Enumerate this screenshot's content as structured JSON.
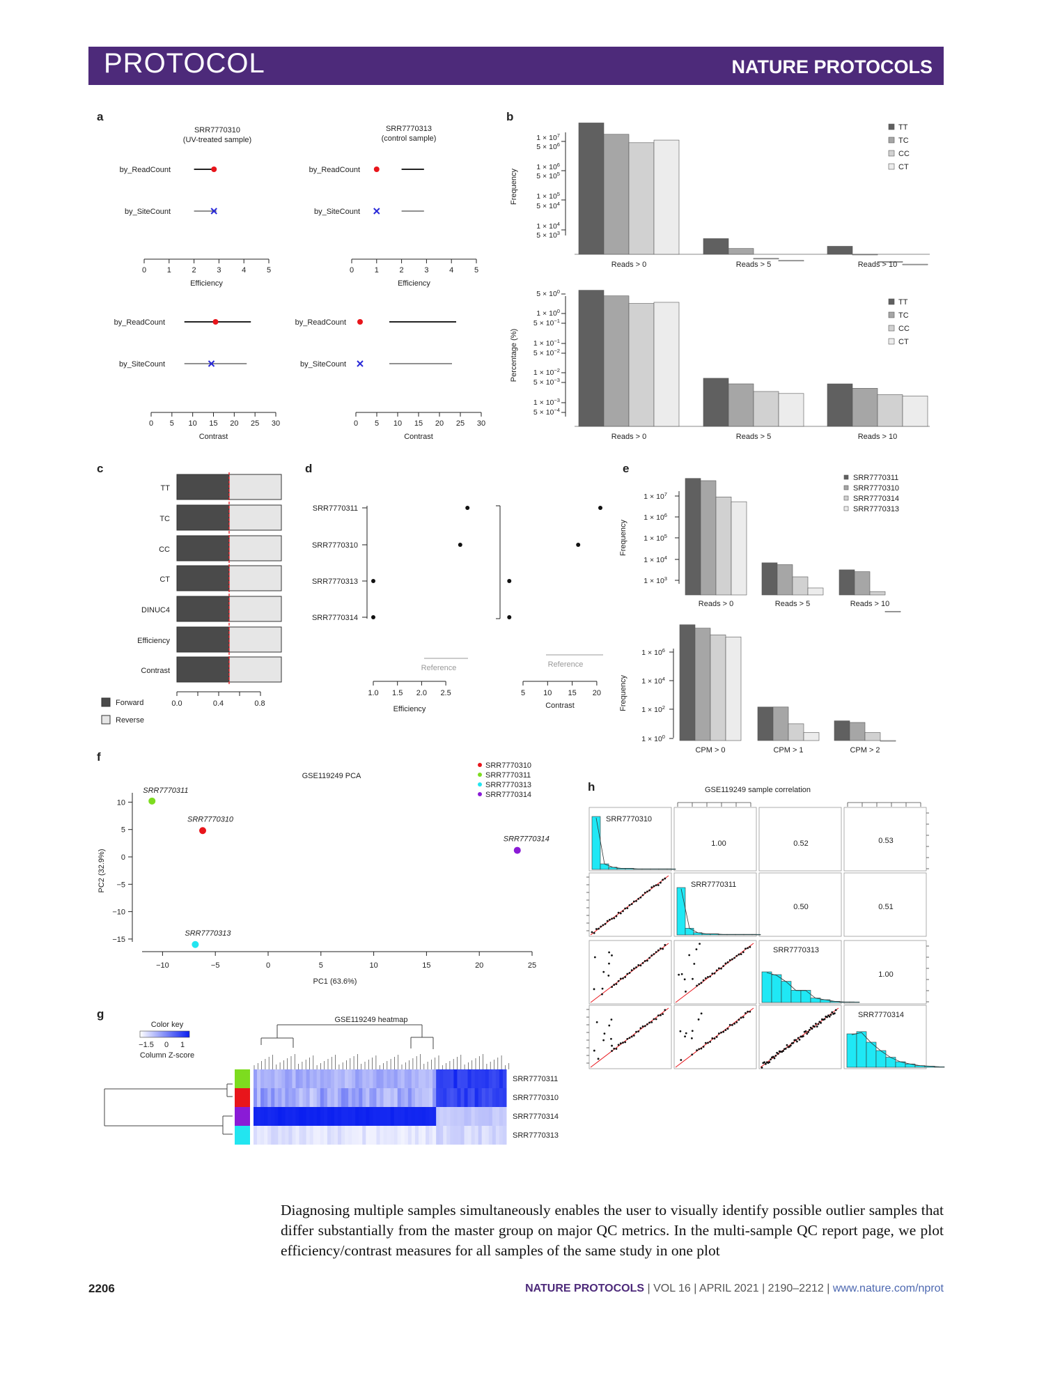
{
  "header": {
    "section": "PROTOCOL",
    "journal": "NATURE PROTOCOLS"
  },
  "colors": {
    "banner": "#4d2a7a",
    "red": "#e8151b",
    "blue": "#2a2ad8",
    "green": "#7ddc1f",
    "cyan": "#22e5f0",
    "purple": "#8a1bd6",
    "heat_blue": "#0a1ff0",
    "hist_cyan": "#1fe8f5"
  },
  "panel_a": {
    "letter": "a",
    "s1_title": "SRR7770310",
    "s1_sub": "(UV-treated sample)",
    "s2_title": "SRR7770313",
    "s2_sub": "(control sample)",
    "row1": "by_ReadCount",
    "row2": "by_SiteCount",
    "eff_label": "Efficiency",
    "con_label": "Contrast",
    "eff_ticks": [
      "0",
      "1",
      "2",
      "3",
      "4",
      "5"
    ],
    "con_ticks": [
      "0",
      "5",
      "10",
      "15",
      "20",
      "25",
      "30"
    ],
    "chart_data": [
      {
        "type": "dot",
        "sample": "SRR7770310",
        "measure": "Efficiency",
        "xlim": [
          0,
          5
        ],
        "points": [
          {
            "label": "by_ReadCount",
            "value": 2.8,
            "ci": [
              2.0,
              2.9
            ]
          },
          {
            "label": "by_SiteCount",
            "value": 2.8,
            "ci": [
              2.0,
              2.9
            ]
          }
        ]
      },
      {
        "type": "dot",
        "sample": "SRR7770313",
        "measure": "Efficiency",
        "xlim": [
          0,
          5
        ],
        "points": [
          {
            "label": "by_ReadCount",
            "value": 1.0,
            "ci": [
              2.0,
              2.9
            ]
          },
          {
            "label": "by_SiteCount",
            "value": 1.0,
            "ci": [
              2.0,
              2.9
            ]
          }
        ]
      },
      {
        "type": "dot",
        "sample": "SRR7770310",
        "measure": "Contrast",
        "xlim": [
          0,
          30
        ],
        "points": [
          {
            "label": "by_ReadCount",
            "value": 15.5,
            "ci": [
              8,
              24
            ]
          },
          {
            "label": "by_SiteCount",
            "value": 14.5,
            "ci": [
              8,
              23
            ]
          }
        ]
      },
      {
        "type": "dot",
        "sample": "SRR7770313",
        "measure": "Contrast",
        "xlim": [
          0,
          30
        ],
        "points": [
          {
            "label": "by_ReadCount",
            "value": 1.0,
            "ci": [
              8,
              24
            ]
          },
          {
            "label": "by_SiteCount",
            "value": 1.0,
            "ci": [
              8,
              23
            ]
          }
        ]
      }
    ]
  },
  "panel_b": {
    "letter": "b",
    "legend": [
      "TT",
      "TC",
      "CC",
      "CT"
    ],
    "groups": [
      "Reads > 0",
      "Reads > 5",
      "Reads > 10"
    ],
    "top": {
      "ylabel": "Frequency",
      "ticks": [
        [
          "1 × 10",
          "7"
        ],
        [
          "5 × 10",
          "6"
        ],
        [
          "1 × 10",
          "6"
        ],
        [
          "5 × 10",
          "5"
        ],
        [
          "1 × 10",
          "5"
        ],
        [
          "5 × 10",
          "4"
        ],
        [
          "1 × 10",
          "4"
        ],
        [
          "5 × 10",
          "3"
        ]
      ]
    },
    "bottom": {
      "ylabel": "Percentage (%)",
      "ticks": [
        [
          "5 × 10",
          "0"
        ],
        [
          "1 × 10",
          "0"
        ],
        [
          "5 × 10",
          "−1"
        ],
        [
          "1 × 10",
          "−1"
        ],
        [
          "5 × 10",
          "−2"
        ],
        [
          "1 × 10",
          "−2"
        ],
        [
          "5 × 10",
          "−3"
        ],
        [
          "1 × 10",
          "−3"
        ],
        [
          "5 × 10",
          "−4"
        ]
      ]
    },
    "chart_data": [
      {
        "type": "bar",
        "yscale": "log",
        "ylabel": "Frequency",
        "categories": [
          "Reads > 0",
          "Reads > 5",
          "Reads > 10"
        ],
        "series": [
          {
            "name": "TT",
            "values": [
              20000000,
              6000,
              3500
            ]
          },
          {
            "name": "TC",
            "values": [
              9000000,
              3000,
              2000
            ]
          },
          {
            "name": "CC",
            "values": [
              5000000,
              1500,
              1200
            ]
          },
          {
            "name": "CT",
            "values": [
              6000000,
              1300,
              1000
            ]
          }
        ]
      },
      {
        "type": "bar",
        "yscale": "log",
        "ylabel": "Percentage (%)",
        "categories": [
          "Reads > 0",
          "Reads > 5",
          "Reads > 10"
        ],
        "series": [
          {
            "name": "TT",
            "values": [
              6,
              0.002,
              0.0012
            ]
          },
          {
            "name": "TC",
            "values": [
              3.6,
              0.0012,
              0.0008
            ]
          },
          {
            "name": "CC",
            "values": [
              1.8,
              0.0006,
              0.00045
            ]
          },
          {
            "name": "CT",
            "values": [
              2.0,
              0.0005,
              0.0004
            ]
          }
        ]
      }
    ]
  },
  "panel_c": {
    "letter": "c",
    "rows": [
      "TT",
      "TC",
      "CC",
      "CT",
      "DINUC4",
      "Efficiency",
      "Contrast"
    ],
    "ticks": [
      "0.0",
      "0.4",
      "0.8"
    ],
    "legend_forward": "Forward",
    "legend_reverse": "Reverse",
    "chart_data": {
      "type": "bar",
      "stacked": true,
      "categories": [
        "TT",
        "TC",
        "CC",
        "CT",
        "DINUC4",
        "Efficiency",
        "Contrast"
      ],
      "series": [
        {
          "name": "Forward",
          "values": [
            0.5,
            0.5,
            0.5,
            0.5,
            0.5,
            0.5,
            0.5
          ]
        },
        {
          "name": "Reverse",
          "values": [
            0.5,
            0.5,
            0.5,
            0.5,
            0.5,
            0.5,
            0.5
          ]
        }
      ],
      "reference_line": 0.5
    }
  },
  "panel_d": {
    "letter": "d",
    "samples": [
      "SRR7770311",
      "SRR7770310",
      "SRR7770313",
      "SRR7770314"
    ],
    "reference": "Reference",
    "eff_label": "Efficiency",
    "con_label": "Contrast",
    "eff_ticks": [
      "1.0",
      "1.5",
      "2.0",
      "2.5"
    ],
    "con_ticks": [
      "5",
      "10",
      "15",
      "20"
    ],
    "chart_data": [
      {
        "type": "scatter",
        "xlabel": "Efficiency",
        "points": [
          {
            "label": "SRR7770311",
            "x": 2.95
          },
          {
            "label": "SRR7770310",
            "x": 2.8
          },
          {
            "label": "SRR7770313",
            "x": 1.0
          },
          {
            "label": "SRR7770314",
            "x": 1.0
          }
        ]
      },
      {
        "type": "scatter",
        "xlabel": "Contrast",
        "points": [
          {
            "label": "SRR7770311",
            "x": 20
          },
          {
            "label": "SRR7770310",
            "x": 15.5
          },
          {
            "label": "SRR7770313",
            "x": 1.5
          },
          {
            "label": "SRR7770314",
            "x": 1.5
          }
        ]
      }
    ]
  },
  "panel_e": {
    "letter": "e",
    "legend": [
      "SRR7770311",
      "SRR7770310",
      "SRR7770314",
      "SRR7770313"
    ],
    "top": {
      "ylabel": "Frequency",
      "ticks": [
        [
          "1 × 10",
          "7"
        ],
        [
          "1 × 10",
          "6"
        ],
        [
          "1 × 10",
          "5"
        ],
        [
          "1 × 10",
          "4"
        ],
        [
          "1 × 10",
          "3"
        ]
      ],
      "groups": [
        "Reads > 0",
        "Reads > 5",
        "Reads > 10"
      ]
    },
    "bottom": {
      "ylabel": "Frequency",
      "ticks": [
        [
          "1 × 10",
          "6"
        ],
        [
          "1 × 10",
          "4"
        ],
        [
          "1 × 10",
          "2"
        ],
        [
          "1 × 10",
          "0"
        ]
      ],
      "groups": [
        "CPM > 0",
        "CPM > 1",
        "CPM > 2"
      ]
    },
    "chart_data": [
      {
        "type": "bar",
        "yscale": "log",
        "categories": [
          "Reads > 0",
          "Reads > 5",
          "Reads > 10"
        ],
        "series": [
          {
            "name": "SRR7770311",
            "values": [
              50000000,
              12000,
              6000
            ]
          },
          {
            "name": "SRR7770310",
            "values": [
              40000000,
              10000,
              5000
            ]
          },
          {
            "name": "SRR7770314",
            "values": [
              8000000,
              3000,
              700
            ]
          },
          {
            "name": "SRR7770313",
            "values": [
              5000000,
              1000,
              100
            ]
          }
        ]
      },
      {
        "type": "bar",
        "yscale": "log",
        "categories": [
          "CPM > 0",
          "CPM > 1",
          "CPM > 2"
        ],
        "series": [
          {
            "name": "SRR7770311",
            "values": [
              8000000,
              100,
              15
            ]
          },
          {
            "name": "SRR7770310",
            "values": [
              5000000,
              100,
              12
            ]
          },
          {
            "name": "SRR7770314",
            "values": [
              2000000,
              10,
              3
            ]
          },
          {
            "name": "SRR7770313",
            "values": [
              1500000,
              3,
              1
            ]
          }
        ]
      }
    ]
  },
  "panel_f": {
    "letter": "f",
    "title": "GSE119249 PCA",
    "xlabel": "PC1 (63.6%)",
    "ylabel": "PC2 (32.9%)",
    "xticks": [
      "−10",
      "−5",
      "0",
      "5",
      "10",
      "15",
      "20",
      "25"
    ],
    "yticks": [
      "10",
      "5",
      "0",
      "−5",
      "−10",
      "−15"
    ],
    "legend": [
      "SRR7770310",
      "SRR7770311",
      "SRR7770313",
      "SRR7770314"
    ],
    "chart_data": {
      "type": "scatter",
      "title": "GSE119249 PCA",
      "xlabel": "PC1 (63.6%)",
      "ylabel": "PC2 (32.9%)",
      "xlim": [
        -12.5,
        26
      ],
      "ylim": [
        -16.5,
        11.5
      ],
      "points": [
        {
          "label": "SRR7770311",
          "x": -11,
          "y": 10.2
        },
        {
          "label": "SRR7770310",
          "x": -6.2,
          "y": 4.8
        },
        {
          "label": "SRR7770314",
          "x": 23.6,
          "y": 1.2
        },
        {
          "label": "SRR7770313",
          "x": -6.9,
          "y": -16
        }
      ]
    }
  },
  "panel_g": {
    "letter": "g",
    "title": "GSE119249 heatmap",
    "key_title": "Color key",
    "key_ticks": [
      "−1.5",
      "0",
      "1"
    ],
    "key_label": "Column Z-score",
    "rows": [
      "SRR7770311",
      "SRR7770310",
      "SRR7770314",
      "SRR7770313"
    ],
    "chart_data": {
      "type": "heatmap",
      "title": "GSE119249 heatmap",
      "rows": [
        "SRR7770311",
        "SRR7770310",
        "SRR7770314",
        "SRR7770313"
      ],
      "color_key_range": [
        -1.5,
        1
      ]
    }
  },
  "panel_h": {
    "letter": "h",
    "title": "GSE119249 sample correlation",
    "samples": [
      "SRR7770310",
      "SRR7770311",
      "SRR7770313",
      "SRR7770314"
    ],
    "correlations": {
      "r1c2": "1.00",
      "r1c3": "0.52",
      "r1c4": "0.53",
      "r2c3": "0.50",
      "r2c4": "0.51",
      "r3c4": "1.00"
    },
    "chart_data": {
      "type": "table",
      "title": "GSE119249 sample correlation",
      "columns": [
        "SRR7770310",
        "SRR7770311",
        "SRR7770313",
        "SRR7770314"
      ],
      "rows": [
        [
          "",
          "1.00",
          "0.52",
          "0.53"
        ],
        [
          "",
          "",
          "0.50",
          "0.51"
        ],
        [
          "",
          "",
          "",
          "1.00"
        ]
      ]
    }
  },
  "body_text": "Diagnosing multiple samples simultaneously enables the user to visually identify possible outlier samples that differ substantially from the master group on major QC metrics. In the multi-sample QC report page, we plot efficiency/contrast measures for all samples of the same study in one plot",
  "footer": {
    "page": "2206",
    "journal": "NATURE PROTOCOLS",
    "citation": " | VOL 16 | APRIL 2021 | 2190–2212 | ",
    "url": "www.nature.com/nprot"
  }
}
